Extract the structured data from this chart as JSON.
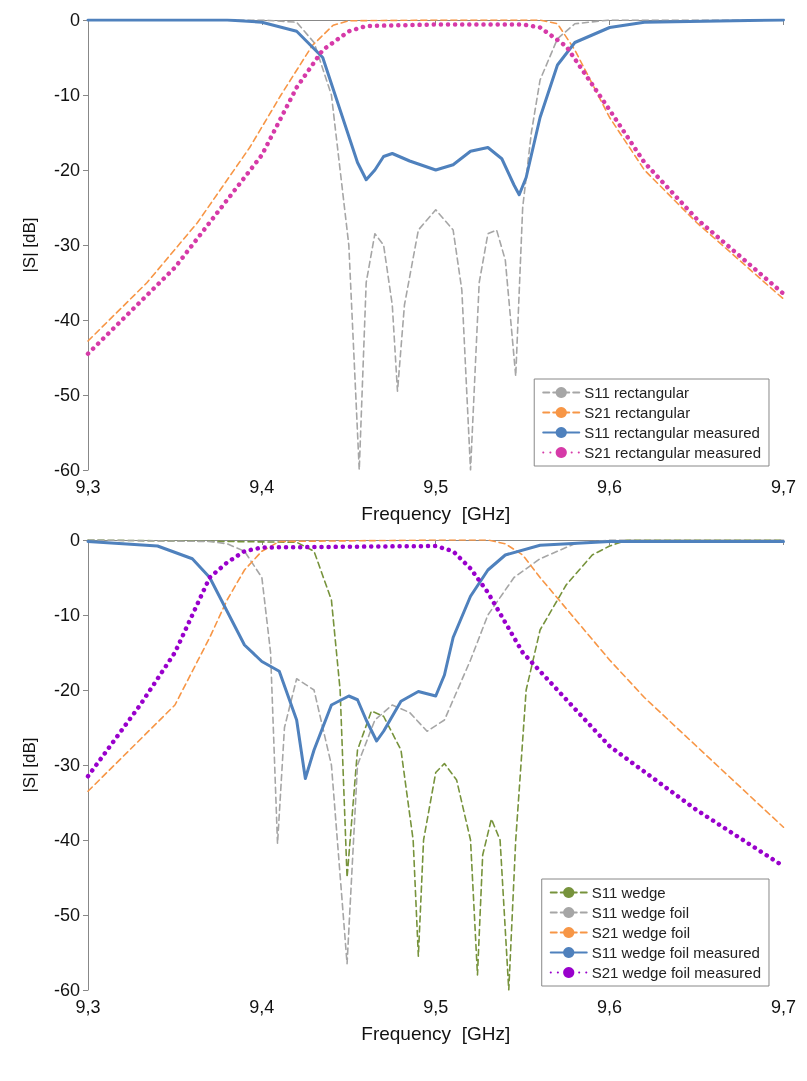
{
  "chart_data": [
    {
      "type": "line",
      "xlabel": "Frequency  [GHz]",
      "ylabel": "|S| [dB]",
      "xlim": [
        9.3,
        9.7
      ],
      "ylim": [
        -60,
        0
      ],
      "xticks": [
        {
          "value": 9.3,
          "label": "9,3"
        },
        {
          "value": 9.4,
          "label": "9,4"
        },
        {
          "value": 9.5,
          "label": "9,5"
        },
        {
          "value": 9.6,
          "label": "9,6"
        },
        {
          "value": 9.7,
          "label": "9,7"
        }
      ],
      "yticks": [
        -60,
        -50,
        -40,
        -30,
        -20,
        -10,
        0
      ],
      "legend": "bottom right",
      "marker": "none",
      "series": [
        {
          "name": "S11 rectangular",
          "color": "#a6a6a6",
          "line_style": "dashed",
          "x": [
            9.3,
            9.4,
            9.42,
            9.43,
            9.44,
            9.45,
            9.456,
            9.46,
            9.465,
            9.47,
            9.475,
            9.478,
            9.482,
            9.49,
            9.5,
            9.51,
            9.515,
            9.52,
            9.525,
            9.53,
            9.535,
            9.54,
            9.546,
            9.55,
            9.555,
            9.56,
            9.57,
            9.58,
            9.6,
            9.7
          ],
          "values": [
            0,
            0,
            -0.3,
            -3,
            -10,
            -30,
            -60,
            -35,
            -28.5,
            -30,
            -38,
            -49.5,
            -38,
            -28,
            -25.3,
            -28,
            -36,
            -60,
            -35,
            -28.5,
            -28,
            -32,
            -47.5,
            -25,
            -15,
            -8,
            -2.5,
            -0.5,
            0,
            0
          ]
        },
        {
          "name": "S21 rectangular",
          "color": "#f79646",
          "line_style": "dashed",
          "x": [
            9.3,
            9.334,
            9.363,
            9.393,
            9.411,
            9.429,
            9.441,
            9.45,
            9.5,
            9.56,
            9.57,
            9.58,
            9.6,
            9.62,
            9.65,
            9.7
          ],
          "values": [
            -42.8,
            -35,
            -27,
            -17,
            -10,
            -3.4,
            -0.7,
            -0.1,
            0,
            0,
            -0.5,
            -4,
            -13,
            -20,
            -27,
            -37.2
          ]
        },
        {
          "name": "S11 rectangular measured",
          "color": "#4f81bd",
          "line_style": "solid",
          "x": [
            9.3,
            9.38,
            9.4,
            9.42,
            9.435,
            9.445,
            9.455,
            9.46,
            9.465,
            9.47,
            9.475,
            9.485,
            9.5,
            9.51,
            9.52,
            9.53,
            9.538,
            9.545,
            9.548,
            9.552,
            9.56,
            9.57,
            9.58,
            9.6,
            9.62,
            9.7
          ],
          "values": [
            0,
            0,
            -0.3,
            -1.5,
            -5,
            -12,
            -19,
            -21.3,
            -20,
            -18.2,
            -17.8,
            -18.8,
            -20,
            -19.3,
            -17.5,
            -17,
            -18.5,
            -22,
            -23.3,
            -21,
            -13,
            -6,
            -3,
            -1,
            -0.3,
            0
          ]
        },
        {
          "name": "S21 rectangular measured",
          "color": "#d63aa8",
          "line_style": "dotted",
          "x": [
            9.3,
            9.35,
            9.4,
            9.42,
            9.435,
            9.45,
            9.46,
            9.5,
            9.55,
            9.56,
            9.575,
            9.6,
            9.62,
            9.65,
            9.7
          ],
          "values": [
            -44.5,
            -33,
            -18,
            -9,
            -4,
            -1.5,
            -0.8,
            -0.6,
            -0.6,
            -1,
            -3.5,
            -12,
            -19,
            -26.5,
            -36.5
          ]
        }
      ]
    },
    {
      "type": "line",
      "xlabel": "Frequency  [GHz]",
      "ylabel": "|S| [dB]",
      "xlim": [
        9.3,
        9.7
      ],
      "ylim": [
        -60,
        0
      ],
      "xticks": [
        {
          "value": 9.3,
          "label": "9,3"
        },
        {
          "value": 9.4,
          "label": "9,4"
        },
        {
          "value": 9.5,
          "label": "9,5"
        },
        {
          "value": 9.6,
          "label": "9,6"
        },
        {
          "value": 9.7,
          "label": "9,7"
        }
      ],
      "yticks": [
        -60,
        -50,
        -40,
        -30,
        -20,
        -10,
        0
      ],
      "legend": "bottom right",
      "marker": "none",
      "series": [
        {
          "name": "S11 wedge",
          "color": "#77933c",
          "line_style": "dashed",
          "x": [
            9.3,
            9.42,
            9.43,
            9.44,
            9.445,
            9.449,
            9.455,
            9.463,
            9.47,
            9.48,
            9.487,
            9.49,
            9.493,
            9.5,
            9.505,
            9.512,
            9.52,
            9.524,
            9.527,
            9.532,
            9.537,
            9.542,
            9.546,
            9.552,
            9.56,
            9.575,
            9.59,
            9.6,
            9.61,
            9.7
          ],
          "values": [
            0,
            -0.3,
            -1.5,
            -8,
            -20,
            -45,
            -28,
            -22.8,
            -23.5,
            -28,
            -40,
            -55.5,
            -40,
            -31,
            -29.8,
            -32,
            -40,
            -58,
            -42,
            -37.2,
            -40,
            -60,
            -40,
            -20,
            -12,
            -6,
            -2,
            -0.8,
            0,
            0
          ]
        },
        {
          "name": "S11 wedge foil",
          "color": "#a6a6a6",
          "line_style": "dashed",
          "x": [
            9.3,
            9.37,
            9.38,
            9.39,
            9.4,
            9.405,
            9.409,
            9.413,
            9.42,
            9.43,
            9.44,
            9.449,
            9.455,
            9.465,
            9.475,
            9.485,
            9.495,
            9.505,
            9.52,
            9.53,
            9.545,
            9.56,
            9.58,
            9.6,
            9.7
          ],
          "values": [
            0,
            -0.2,
            -0.5,
            -1.5,
            -5,
            -15,
            -40.5,
            -25,
            -18.5,
            -20,
            -30,
            -56.5,
            -30,
            -24,
            -22,
            -23,
            -25.5,
            -24,
            -16,
            -10,
            -5,
            -2.5,
            -0.5,
            0,
            0
          ]
        },
        {
          "name": "S21 wedge foil",
          "color": "#f79646",
          "line_style": "dashed",
          "x": [
            9.3,
            9.35,
            9.37,
            9.38,
            9.39,
            9.4,
            9.41,
            9.5,
            9.53,
            9.54,
            9.55,
            9.56,
            9.58,
            9.6,
            9.62,
            9.65,
            9.7
          ],
          "values": [
            -33.5,
            -22,
            -13,
            -8,
            -4,
            -1.5,
            -0.2,
            0,
            0,
            -0.5,
            -2,
            -5,
            -10.5,
            -16,
            -21,
            -27.5,
            -38.3
          ]
        },
        {
          "name": "S11 wedge foil measured",
          "color": "#4f81bd",
          "line_style": "solid",
          "x": [
            9.3,
            9.34,
            9.36,
            9.37,
            9.38,
            9.39,
            9.4,
            9.41,
            9.42,
            9.425,
            9.43,
            9.44,
            9.45,
            9.455,
            9.46,
            9.466,
            9.47,
            9.48,
            9.49,
            9.495,
            9.5,
            9.505,
            9.51,
            9.52,
            9.53,
            9.54,
            9.56,
            9.6,
            9.7
          ],
          "values": [
            -0.2,
            -0.8,
            -2.5,
            -5,
            -9.5,
            -14,
            -16.2,
            -17.5,
            -24,
            -31.8,
            -28,
            -22,
            -20.8,
            -21.3,
            -24,
            -26.8,
            -25.5,
            -21.5,
            -20.2,
            -20.5,
            -20.8,
            -18,
            -13,
            -7.5,
            -4,
            -2,
            -0.7,
            -0.2,
            -0.2
          ]
        },
        {
          "name": "S21 wedge foil measured",
          "color": "#9900cc",
          "line_style": "dotted",
          "x": [
            9.3,
            9.33,
            9.35,
            9.37,
            9.38,
            9.39,
            9.4,
            9.5,
            9.51,
            9.52,
            9.53,
            9.55,
            9.6,
            9.65,
            9.7
          ],
          "values": [
            -31.5,
            -22,
            -15,
            -5,
            -3,
            -1.5,
            -1,
            -0.8,
            -1.5,
            -3.8,
            -7,
            -15,
            -27.5,
            -36,
            -43.5
          ]
        }
      ]
    }
  ]
}
